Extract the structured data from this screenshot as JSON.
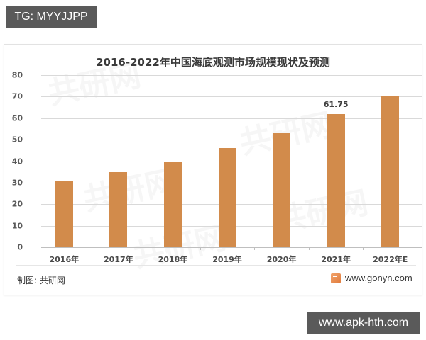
{
  "overlay": {
    "top_badge": "TG: MYYJJPP",
    "bottom_badge": "www.apk-hth.com"
  },
  "card": {
    "source_label": "制图: 共研网",
    "source_url": "www.gonyn.com",
    "watermark_text": "共研网"
  },
  "colors": {
    "bar": "#d28b4b",
    "gridline": "#d9d9d9",
    "badge_bg": "#5a5a5a"
  },
  "chart_data": {
    "type": "bar",
    "title": "2016-2022年中国海底观测市场规模现状及预测",
    "xlabel": "",
    "ylabel": "",
    "categories": [
      "2016年",
      "2017年",
      "2018年",
      "2019年",
      "2020年",
      "2021年",
      "2022年E"
    ],
    "values": [
      30.5,
      35,
      40,
      46,
      53,
      61.75,
      70.5
    ],
    "data_labels": {
      "5": "61.75"
    },
    "ylim": [
      0,
      80
    ],
    "yticks": [
      0,
      10,
      20,
      30,
      40,
      50,
      60,
      70,
      80
    ],
    "grid": true,
    "legend": null
  }
}
